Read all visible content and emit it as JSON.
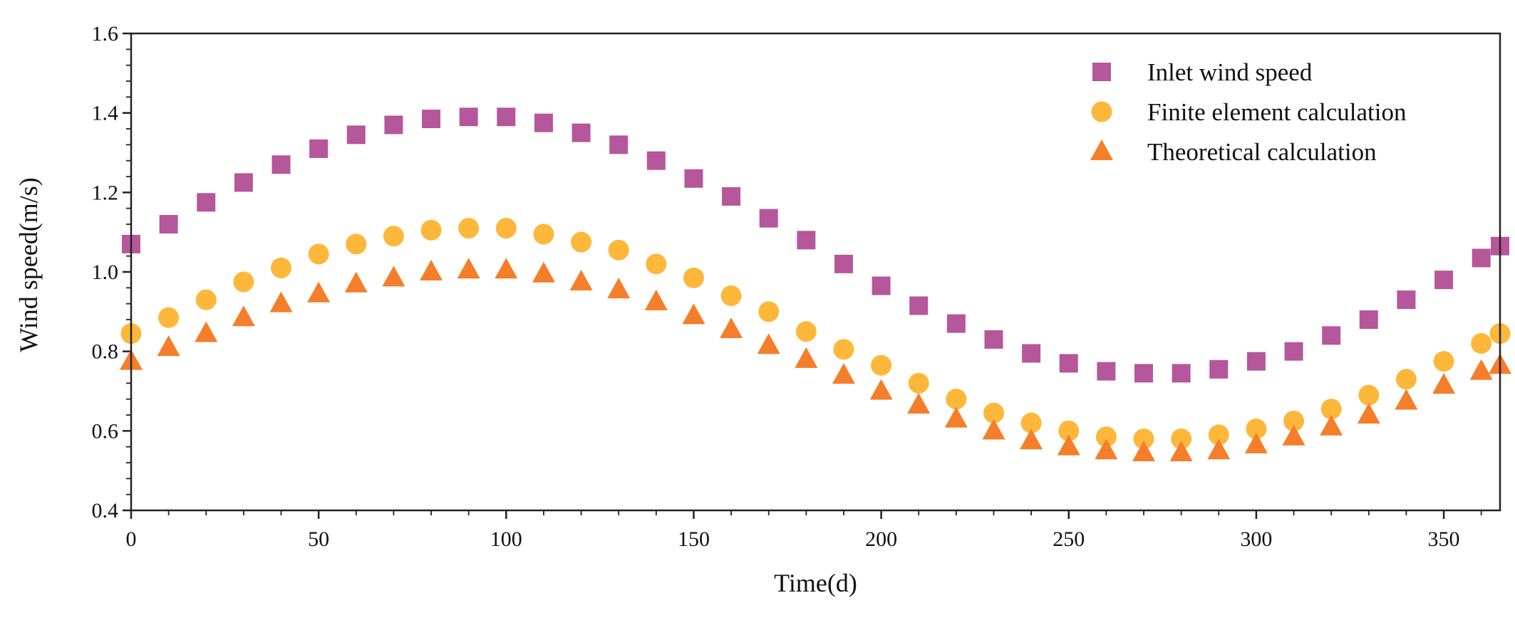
{
  "chart_data": {
    "type": "scatter",
    "title": "",
    "xlabel": "Time(d)",
    "ylabel": "Wind speed(m/s)",
    "xlim": [
      0,
      365
    ],
    "ylim": [
      0.4,
      1.6
    ],
    "x_ticks": [
      0,
      50,
      100,
      150,
      200,
      250,
      300,
      350
    ],
    "x_tick_labels": [
      "0",
      "50",
      "100",
      "150",
      "200",
      "250",
      "300",
      "350"
    ],
    "y_ticks": [
      0.4,
      0.6,
      0.8,
      1.0,
      1.2,
      1.4,
      1.6
    ],
    "y_tick_labels": [
      "0.4",
      "0.6",
      "0.8",
      "1.0",
      "1.2",
      "1.4",
      "1.6"
    ],
    "grid": false,
    "legend_position": "top-right",
    "x": [
      0,
      10,
      20,
      30,
      40,
      50,
      60,
      70,
      80,
      90,
      100,
      110,
      120,
      130,
      140,
      150,
      160,
      170,
      180,
      190,
      200,
      210,
      220,
      230,
      240,
      250,
      260,
      270,
      280,
      290,
      300,
      310,
      320,
      330,
      340,
      350,
      360,
      365
    ],
    "series": [
      {
        "name": "Inlet wind speed",
        "marker": "square",
        "color": "#B5579A",
        "values": [
          1.07,
          1.12,
          1.175,
          1.225,
          1.27,
          1.31,
          1.345,
          1.37,
          1.385,
          1.39,
          1.39,
          1.375,
          1.35,
          1.32,
          1.28,
          1.235,
          1.19,
          1.135,
          1.08,
          1.02,
          0.965,
          0.915,
          0.87,
          0.83,
          0.795,
          0.77,
          0.75,
          0.745,
          0.745,
          0.755,
          0.775,
          0.8,
          0.84,
          0.88,
          0.93,
          0.98,
          1.035,
          1.065
        ]
      },
      {
        "name": "Finite element calculation",
        "marker": "circle",
        "color": "#FDB73A",
        "values": [
          0.845,
          0.885,
          0.93,
          0.975,
          1.01,
          1.045,
          1.07,
          1.09,
          1.105,
          1.11,
          1.11,
          1.095,
          1.075,
          1.055,
          1.02,
          0.985,
          0.94,
          0.9,
          0.85,
          0.805,
          0.765,
          0.72,
          0.68,
          0.645,
          0.62,
          0.6,
          0.585,
          0.58,
          0.58,
          0.59,
          0.605,
          0.625,
          0.655,
          0.69,
          0.73,
          0.775,
          0.82,
          0.845
        ]
      },
      {
        "name": "Theoretical calculation",
        "marker": "triangle",
        "color": "#F57E2A",
        "values": [
          0.775,
          0.81,
          0.845,
          0.885,
          0.92,
          0.945,
          0.97,
          0.985,
          1.0,
          1.005,
          1.005,
          0.995,
          0.975,
          0.955,
          0.925,
          0.89,
          0.855,
          0.815,
          0.78,
          0.74,
          0.7,
          0.665,
          0.63,
          0.6,
          0.575,
          0.56,
          0.55,
          0.545,
          0.545,
          0.55,
          0.565,
          0.585,
          0.61,
          0.64,
          0.675,
          0.715,
          0.75,
          0.765
        ]
      }
    ]
  }
}
